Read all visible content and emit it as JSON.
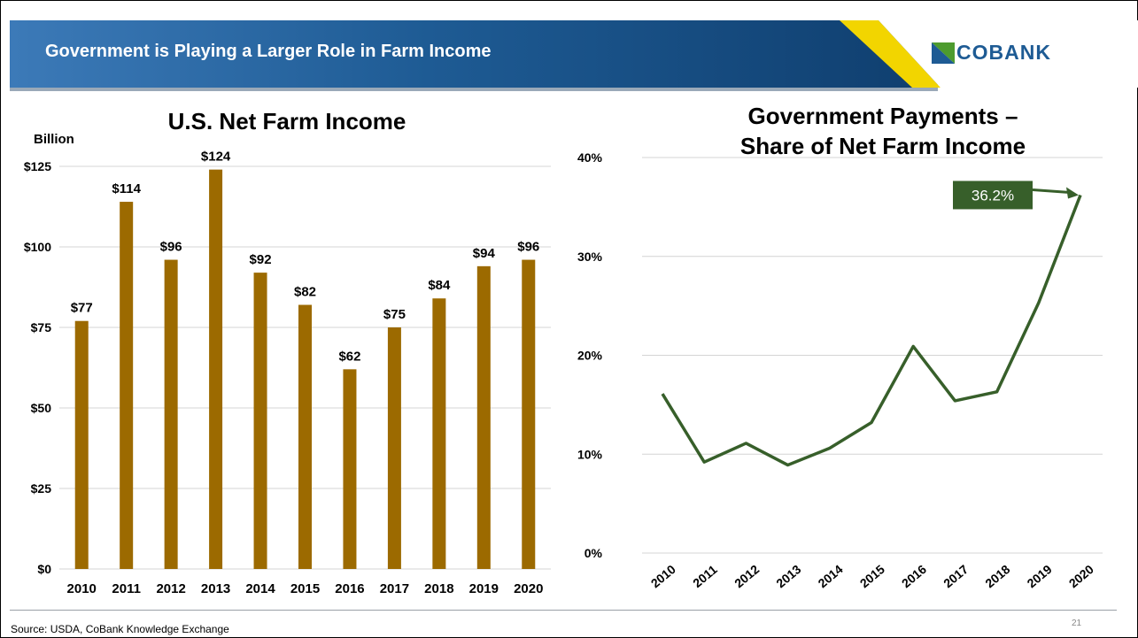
{
  "header": {
    "title": "Government is Playing a Larger Role in Farm Income",
    "logo_text": "COBANK"
  },
  "footer": {
    "source": "Source: USDA, CoBank Knowledge Exchange",
    "page_number": "21"
  },
  "colors": {
    "bar": "#9c6a00",
    "line": "#375f2a",
    "callout_bg": "#375f2a",
    "header_start": "#3c7ab8",
    "header_end": "#0f3e6e",
    "accent_yellow": "#f2d500",
    "logo_green": "#4d9b2e"
  },
  "chart_data": [
    {
      "type": "bar",
      "title": "U.S. Net Farm Income",
      "ylabel": "Billion",
      "xlabel": "",
      "categories": [
        "2010",
        "2011",
        "2012",
        "2013",
        "2014",
        "2015",
        "2016",
        "2017",
        "2018",
        "2019",
        "2020"
      ],
      "values": [
        77,
        114,
        96,
        124,
        92,
        82,
        62,
        75,
        84,
        94,
        96
      ],
      "data_labels": [
        "$77",
        "$114",
        "$96",
        "$124",
        "$92",
        "$82",
        "$62",
        "$75",
        "$84",
        "$94",
        "$96"
      ],
      "ylim": [
        0,
        125
      ],
      "yticks": [
        0,
        25,
        50,
        75,
        100,
        125
      ],
      "ytick_labels": [
        "$0",
        "$25",
        "$50",
        "$75",
        "$100",
        "$125"
      ],
      "grid": true,
      "legend": "none"
    },
    {
      "type": "line",
      "title": "Government Payments – Share of Net Farm Income",
      "title_lines": [
        "Government Payments –",
        "Share of Net Farm Income"
      ],
      "xlabel": "",
      "ylabel": "",
      "categories": [
        "2010",
        "2011",
        "2012",
        "2013",
        "2014",
        "2015",
        "2016",
        "2017",
        "2018",
        "2019",
        "2020"
      ],
      "values": [
        16.1,
        9.2,
        11.1,
        8.9,
        10.6,
        13.2,
        20.9,
        15.4,
        16.3,
        25.3,
        36.2
      ],
      "ylim": [
        0,
        40
      ],
      "yticks": [
        0,
        10,
        20,
        30,
        40
      ],
      "ytick_labels": [
        "0%",
        "10%",
        "20%",
        "30%",
        "40%"
      ],
      "grid": true,
      "legend": "none",
      "annotation": {
        "text": "36.2%",
        "category": "2020",
        "value": 36.2
      }
    }
  ]
}
